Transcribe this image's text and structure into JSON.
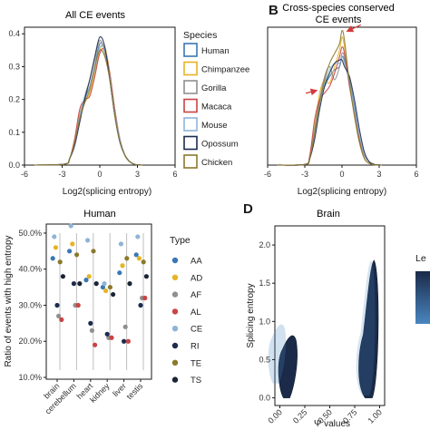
{
  "chart_data": [
    {
      "type": "line",
      "panel_label": "",
      "title": "All CE events",
      "xlabel": "Log2(splicing entropy)",
      "ylabel": "",
      "xlim": [
        -6,
        6
      ],
      "ylim": [
        0,
        0.42
      ],
      "xticks": [
        "-6",
        "-3",
        "0",
        "3",
        "6"
      ],
      "yticks": [
        "0.0",
        "0.1",
        "0.2",
        "0.3",
        "0.4"
      ],
      "legend_title": "Species",
      "x": [
        -2.8,
        -2.4,
        -2.0,
        -1.6,
        -1.2,
        -0.8,
        -0.4,
        0.0,
        0.4,
        0.8,
        1.2,
        1.6,
        2.0,
        2.4,
        2.8
      ],
      "series": [
        {
          "name": "Human",
          "color": "#3a78b4",
          "values": [
            0.003,
            0.02,
            0.07,
            0.14,
            0.2,
            0.24,
            0.3,
            0.37,
            0.35,
            0.27,
            0.16,
            0.08,
            0.03,
            0.01,
            0.002
          ]
        },
        {
          "name": "Chimpanzee",
          "color": "#e7b424",
          "values": [
            0.003,
            0.02,
            0.08,
            0.16,
            0.19,
            0.22,
            0.28,
            0.35,
            0.36,
            0.28,
            0.16,
            0.08,
            0.03,
            0.01,
            0.002
          ]
        },
        {
          "name": "Gorilla",
          "color": "#8f8f8f",
          "values": [
            0.003,
            0.02,
            0.07,
            0.15,
            0.21,
            0.26,
            0.32,
            0.38,
            0.34,
            0.26,
            0.15,
            0.07,
            0.03,
            0.01,
            0.002
          ]
        },
        {
          "name": "Macaca",
          "color": "#c84444",
          "values": [
            0.003,
            0.02,
            0.08,
            0.17,
            0.2,
            0.21,
            0.27,
            0.34,
            0.35,
            0.28,
            0.17,
            0.08,
            0.03,
            0.01,
            0.002
          ]
        },
        {
          "name": "Mouse",
          "color": "#8fb4d8",
          "values": [
            0.003,
            0.02,
            0.07,
            0.15,
            0.21,
            0.24,
            0.29,
            0.36,
            0.35,
            0.27,
            0.16,
            0.08,
            0.03,
            0.01,
            0.002
          ]
        },
        {
          "name": "Opossum",
          "color": "#1d2b4f",
          "values": [
            0.003,
            0.02,
            0.06,
            0.13,
            0.2,
            0.26,
            0.33,
            0.39,
            0.36,
            0.26,
            0.15,
            0.07,
            0.03,
            0.01,
            0.002
          ]
        },
        {
          "name": "Chicken",
          "color": "#8a7a2e",
          "values": [
            0.003,
            0.02,
            0.07,
            0.14,
            0.19,
            0.23,
            0.3,
            0.35,
            0.33,
            0.26,
            0.15,
            0.07,
            0.03,
            0.01,
            0.002
          ]
        }
      ]
    },
    {
      "type": "line",
      "panel_label": "B",
      "title": "Cross-species conserved",
      "title_line2": "CE events",
      "xlabel": "Log2(splicing entropy)",
      "ylabel": "",
      "xlim": [
        -6,
        6
      ],
      "ylim": [
        0,
        0.42
      ],
      "xticks": [
        "-6",
        "-3",
        "0",
        "3",
        "6"
      ],
      "x": [
        -3.0,
        -2.6,
        -2.2,
        -1.8,
        -1.4,
        -1.0,
        -0.6,
        -0.2,
        0.0,
        0.2,
        0.6,
        1.0,
        1.4,
        1.8,
        2.2,
        2.6
      ],
      "series": [
        {
          "name": "Human",
          "color": "#3a78b4",
          "values": [
            0.002,
            0.02,
            0.1,
            0.2,
            0.24,
            0.27,
            0.29,
            0.3,
            0.33,
            0.32,
            0.26,
            0.18,
            0.09,
            0.03,
            0.01,
            0.002
          ]
        },
        {
          "name": "Chimpanzee",
          "color": "#e7b424",
          "values": [
            0.002,
            0.02,
            0.12,
            0.22,
            0.26,
            0.25,
            0.3,
            0.35,
            0.39,
            0.36,
            0.25,
            0.15,
            0.07,
            0.02,
            0.005,
            0.001
          ]
        },
        {
          "name": "Gorilla",
          "color": "#8f8f8f",
          "values": [
            0.002,
            0.02,
            0.11,
            0.2,
            0.27,
            0.3,
            0.26,
            0.3,
            0.34,
            0.33,
            0.26,
            0.17,
            0.08,
            0.03,
            0.01,
            0.002
          ]
        },
        {
          "name": "Macaca",
          "color": "#c84444",
          "values": [
            0.002,
            0.03,
            0.14,
            0.2,
            0.22,
            0.24,
            0.28,
            0.33,
            0.36,
            0.34,
            0.24,
            0.16,
            0.08,
            0.03,
            0.01,
            0.002
          ]
        },
        {
          "name": "Mouse",
          "color": "#8fb4d8",
          "values": [
            0.002,
            0.02,
            0.1,
            0.19,
            0.25,
            0.29,
            0.31,
            0.31,
            0.33,
            0.31,
            0.25,
            0.17,
            0.09,
            0.03,
            0.01,
            0.002
          ]
        },
        {
          "name": "Opossum",
          "color": "#1d2b4f",
          "values": [
            0.002,
            0.02,
            0.08,
            0.17,
            0.24,
            0.28,
            0.31,
            0.32,
            0.32,
            0.3,
            0.27,
            0.2,
            0.11,
            0.04,
            0.01,
            0.002
          ]
        },
        {
          "name": "Chicken",
          "color": "#8a7a2e",
          "values": [
            0.002,
            0.02,
            0.1,
            0.19,
            0.26,
            0.31,
            0.34,
            0.37,
            0.41,
            0.38,
            0.25,
            0.15,
            0.07,
            0.02,
            0.005,
            0.001
          ]
        }
      ],
      "annotations": [
        {
          "type": "arrow",
          "color": "#d43a3a",
          "target_x": 0.2,
          "target_y": 0.405
        },
        {
          "type": "arrow",
          "color": "#d43a3a",
          "target_x": -1.9,
          "target_y": 0.23
        }
      ]
    },
    {
      "type": "scatter",
      "panel_label": "",
      "title": "Human",
      "xlabel": "",
      "ylabel": "Ratio of events with high entropy",
      "ylim": [
        0.095,
        0.525
      ],
      "yticks": [
        "10.0%",
        "20.0%",
        "30.0%",
        "40.0%",
        "50.0%"
      ],
      "categories": [
        "brain",
        "cerebellum",
        "heart",
        "kidney",
        "liver",
        "testis"
      ],
      "legend_title": "Type",
      "series": [
        {
          "name": "AA",
          "color": "#3a78b4",
          "values": [
            0.43,
            0.45,
            0.37,
            0.35,
            0.39,
            0.44
          ]
        },
        {
          "name": "AD",
          "color": "#e7b424",
          "values": [
            0.46,
            0.47,
            0.38,
            0.34,
            0.41,
            0.43
          ]
        },
        {
          "name": "AF",
          "color": "#8f8f8f",
          "values": [
            0.27,
            0.3,
            0.23,
            0.21,
            0.24,
            0.32
          ]
        },
        {
          "name": "AL",
          "color": "#c84444",
          "values": [
            0.26,
            0.3,
            0.19,
            0.21,
            0.2,
            0.32
          ]
        },
        {
          "name": "CE",
          "color": "#8fb4d8",
          "values": [
            0.49,
            0.52,
            0.48,
            0.36,
            0.47,
            0.49
          ]
        },
        {
          "name": "RI",
          "color": "#1d2b4f",
          "values": [
            0.3,
            0.36,
            0.25,
            0.22,
            0.2,
            0.3
          ]
        },
        {
          "name": "TE",
          "color": "#8a7a2e",
          "values": [
            0.42,
            0.44,
            0.45,
            0.35,
            0.43,
            0.42
          ]
        },
        {
          "name": "TS",
          "color": "#1a2436",
          "values": [
            0.38,
            0.36,
            0.36,
            0.33,
            0.36,
            0.38
          ]
        }
      ]
    },
    {
      "type": "heatmap",
      "panel_label": "D",
      "title": "Brain",
      "xlabel": "Ψ values",
      "ylabel": "Splicing entropy",
      "xlim": [
        -0.05,
        1.05
      ],
      "ylim": [
        -0.1,
        2.25
      ],
      "xticks": [
        "0.00",
        "0.25",
        "0.50",
        "0.75",
        "1.00"
      ],
      "yticks": [
        "0.0",
        "0.5",
        "1.0",
        "1.5",
        "2.0"
      ],
      "legend_title": "Le",
      "colors": [
        "#1a2a48",
        "#4a86c0"
      ],
      "regions": [
        {
          "x_range": [
            0.0,
            0.18
          ],
          "y_range": [
            0.0,
            0.85
          ]
        },
        {
          "x_range": [
            0.8,
            0.98
          ],
          "y_range": [
            0.0,
            1.8
          ]
        }
      ]
    }
  ]
}
